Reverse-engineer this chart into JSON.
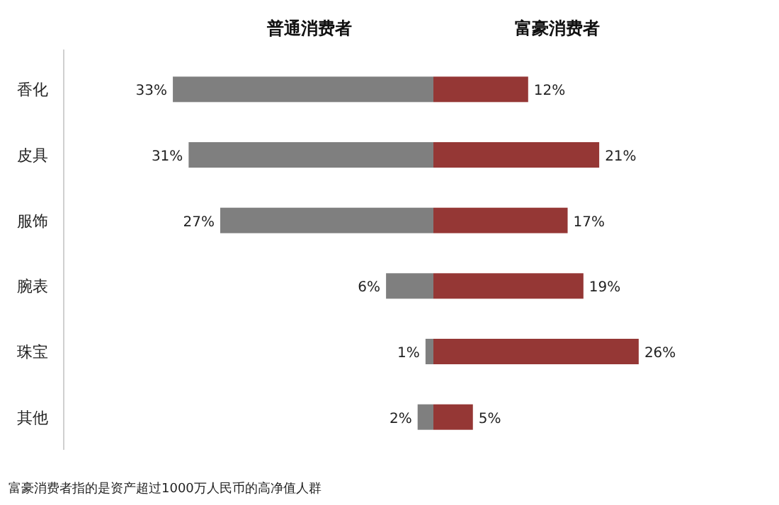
{
  "chart_data": [
    {
      "type": "bar",
      "orientation": "horizontal",
      "title": "普通消费者",
      "categories": [
        "香化",
        "皮具",
        "服饰",
        "腕表",
        "珠宝",
        "其他"
      ],
      "color": "#7f7f7f",
      "values": [
        33,
        31,
        27,
        6,
        1,
        2
      ],
      "value_labels": [
        "33%",
        "31%",
        "27%",
        "6%",
        "1%",
        "2%"
      ],
      "annotations": [
        "富豪消费者指的是资产超过1000万人民币的高净值人群"
      ]
    },
    {
      "type": "bar",
      "orientation": "horizontal",
      "title": "富豪消费者",
      "categories": [
        "香化",
        "皮具",
        "服饰",
        "腕表",
        "珠宝",
        "其他"
      ],
      "tick_labels": false,
      "color": "#953735",
      "values": [
        12,
        21,
        17,
        19,
        26,
        5
      ],
      "value_labels": [
        "12%",
        "21%",
        "17%",
        "19%",
        "26%",
        "5%"
      ]
    }
  ]
}
